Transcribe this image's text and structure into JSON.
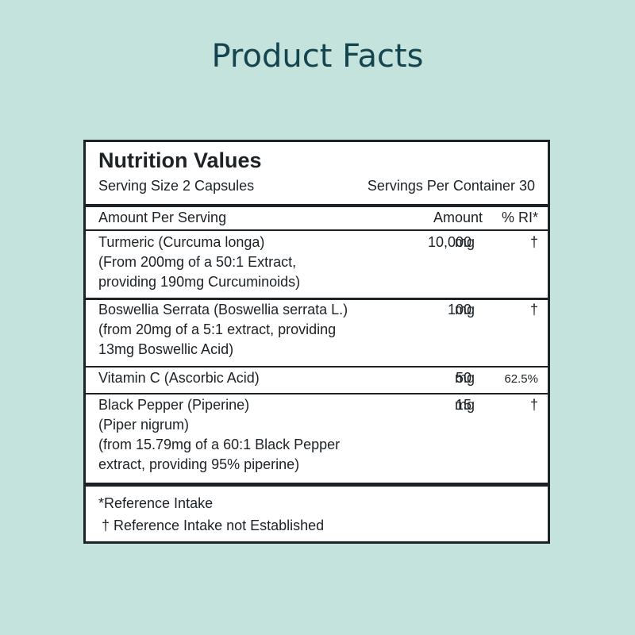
{
  "header": {
    "title": "Product Facts"
  },
  "panel": {
    "title": "Nutrition Values",
    "serving_size": "Serving Size 2 Capsules",
    "servings_per_container": "Servings Per Container 30",
    "columns": {
      "item": "Amount Per Serving",
      "amount": "Amount",
      "ri": "% RI*"
    },
    "rows": [
      {
        "lines": [
          "Turmeric (Curcuma longa)",
          "(From 200mg of a 50:1 Extract,",
          "providing 190mg Curcuminoids)"
        ],
        "amount": "10,000",
        "unit": "mg",
        "ri": "†"
      },
      {
        "lines": [
          "Boswellia Serrata (Boswellia serrata L.)",
          "(from 20mg of a 5:1 extract, providing",
          "13mg Boswellic Acid)"
        ],
        "amount": "100",
        "unit": "mg",
        "ri": "†"
      },
      {
        "lines": [
          "Vitamin C (Ascorbic Acid)"
        ],
        "amount": "50",
        "unit": "mg",
        "ri": "62.5%"
      },
      {
        "lines": [
          "Black Pepper (Piperine)",
          "(Piper nigrum)",
          "(from 15.79mg of a 60:1 Black Pepper",
          "extract, providing 95% piperine)"
        ],
        "amount": "15",
        "unit": "mg",
        "ri": "†"
      }
    ],
    "footnotes": [
      "*Reference Intake",
      "† Reference Intake not Established"
    ]
  }
}
